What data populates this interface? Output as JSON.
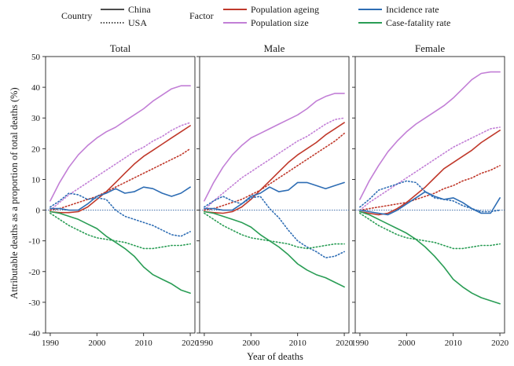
{
  "legend": {
    "country_title": "Country",
    "countries": [
      {
        "name": "China",
        "style": "solid"
      },
      {
        "name": "USA",
        "style": "dotted"
      }
    ],
    "factor_title": "Factor",
    "factors": [
      {
        "name": "Population ageing",
        "color": "#c0392b"
      },
      {
        "name": "Population size",
        "color": "#c27fd6"
      },
      {
        "name": "Incidence rate",
        "color": "#2e6db4"
      },
      {
        "name": "Case-fatality rate",
        "color": "#2a9d55"
      }
    ]
  },
  "chart_data": {
    "type": "line",
    "ylabel": "Attributable deaths as a proportion of total deaths (%)",
    "xlabel": "Year of deaths",
    "ylim": [
      -40,
      50
    ],
    "yticks": [
      -40,
      -30,
      -20,
      -10,
      0,
      10,
      20,
      30,
      40,
      50
    ],
    "xlim": [
      1989,
      2021
    ],
    "xticks": [
      1990,
      2000,
      2010,
      2020
    ],
    "years": [
      1990,
      1992,
      1994,
      1996,
      1998,
      2000,
      2002,
      2004,
      2006,
      2008,
      2010,
      2012,
      2014,
      2016,
      2018,
      2020
    ],
    "panels": [
      {
        "title": "Total",
        "series": [
          {
            "factor": "Population size",
            "country": "China",
            "values": [
              3,
              9,
              14,
              18,
              21,
              23.5,
              25.5,
              27,
              29,
              31,
              33,
              35.5,
              37.5,
              39.5,
              40.5,
              40.5
            ]
          },
          {
            "factor": "Population size",
            "country": "USA",
            "values": [
              0,
              2.5,
              5,
              7,
              9,
              11,
              13,
              15,
              17,
              19,
              20.5,
              22.5,
              24,
              26,
              27.5,
              28.5
            ]
          },
          {
            "factor": "Population ageing",
            "country": "China",
            "values": [
              -0.5,
              -0.8,
              -0.8,
              -0.5,
              1,
              3.5,
              6,
              9,
              12,
              15,
              17.5,
              19.5,
              21.5,
              23.5,
              25.5,
              27.5
            ]
          },
          {
            "factor": "Population ageing",
            "country": "USA",
            "values": [
              0,
              0.5,
              1.5,
              2.5,
              3.5,
              4.5,
              6,
              7.5,
              9,
              10.5,
              12,
              13.5,
              15,
              16.5,
              18,
              20
            ]
          },
          {
            "factor": "Incidence rate",
            "country": "China",
            "values": [
              0.5,
              0.5,
              0,
              0,
              2,
              4.5,
              5.5,
              7,
              5.5,
              6,
              7.5,
              7,
              5.5,
              4.5,
              5.5,
              7.5
            ]
          },
          {
            "factor": "Incidence rate",
            "country": "USA",
            "values": [
              1,
              3,
              5.5,
              5,
              3.5,
              4,
              3.5,
              0,
              -2,
              -3,
              -4,
              -5,
              -6.5,
              -8,
              -8.5,
              -7
            ]
          },
          {
            "factor": "Case-fatality rate",
            "country": "China",
            "values": [
              -0.5,
              -1,
              -2,
              -3,
              -4.5,
              -6,
              -8.5,
              -10.5,
              -12.5,
              -15,
              -18.5,
              -21,
              -22.5,
              -24,
              -26,
              -27
            ]
          },
          {
            "factor": "Case-fatality rate",
            "country": "USA",
            "values": [
              -1,
              -3,
              -5,
              -6.5,
              -8,
              -9,
              -9.5,
              -10,
              -10.5,
              -11.5,
              -12.5,
              -12.5,
              -12,
              -11.5,
              -11.5,
              -11
            ]
          }
        ]
      },
      {
        "title": "Male",
        "series": [
          {
            "factor": "Population size",
            "country": "China",
            "values": [
              3,
              9,
              14,
              18,
              21,
              23.5,
              25,
              26.5,
              28,
              29.5,
              31,
              33,
              35.5,
              37,
              38,
              38
            ]
          },
          {
            "factor": "Population size",
            "country": "USA",
            "values": [
              0,
              3,
              5.5,
              8,
              10.5,
              12.5,
              14.5,
              16.5,
              18.5,
              20.5,
              22.5,
              24,
              26,
              28,
              29.5,
              30
            ]
          },
          {
            "factor": "Population ageing",
            "country": "China",
            "values": [
              -0.5,
              -0.8,
              -1,
              -0.5,
              1,
              3.5,
              6.5,
              9.5,
              12.5,
              15.5,
              18,
              20,
              22,
              24.5,
              26.5,
              28.5
            ]
          },
          {
            "factor": "Population ageing",
            "country": "USA",
            "values": [
              0,
              0.5,
              1.5,
              2.5,
              3.5,
              5,
              6.5,
              8.5,
              10.5,
              12.5,
              14.5,
              16.5,
              18.5,
              20.5,
              22.5,
              25
            ]
          },
          {
            "factor": "Incidence rate",
            "country": "China",
            "values": [
              0.5,
              0.5,
              0,
              0,
              2,
              4.5,
              5.5,
              7.5,
              6,
              6.5,
              9,
              9,
              8,
              7,
              8,
              9
            ]
          },
          {
            "factor": "Incidence rate",
            "country": "USA",
            "values": [
              1,
              3,
              4.5,
              3,
              2,
              4,
              4.5,
              0.5,
              -2.5,
              -6.5,
              -10,
              -12,
              -13.5,
              -15.5,
              -15,
              -13.5
            ]
          },
          {
            "factor": "Case-fatality rate",
            "country": "China",
            "values": [
              -0.5,
              -1,
              -2,
              -3,
              -4,
              -5.5,
              -8,
              -10,
              -12,
              -14.5,
              -17.5,
              -19.5,
              -21,
              -22,
              -23.5,
              -25
            ]
          },
          {
            "factor": "Case-fatality rate",
            "country": "USA",
            "values": [
              -1,
              -3,
              -5,
              -6.5,
              -8,
              -9,
              -9.5,
              -10,
              -10.5,
              -11,
              -12,
              -12.5,
              -12,
              -11.5,
              -11,
              -11
            ]
          }
        ]
      },
      {
        "title": "Female",
        "series": [
          {
            "factor": "Population size",
            "country": "China",
            "values": [
              3.5,
              9.5,
              14.5,
              19,
              22.5,
              25.5,
              28,
              30,
              32,
              34,
              36.5,
              39.5,
              42.5,
              44.5,
              45,
              45
            ]
          },
          {
            "factor": "Population size",
            "country": "USA",
            "values": [
              0,
              2.5,
              4.5,
              6.5,
              8.5,
              10.5,
              12.5,
              14.5,
              16.5,
              18.5,
              20.5,
              22,
              23.5,
              25,
              26.5,
              27
            ]
          },
          {
            "factor": "Population ageing",
            "country": "China",
            "values": [
              -0.5,
              -1,
              -1.5,
              -1,
              0.5,
              2.5,
              5,
              7.5,
              10.5,
              13.5,
              15.5,
              17.5,
              19.5,
              22,
              24,
              26
            ]
          },
          {
            "factor": "Population ageing",
            "country": "USA",
            "values": [
              0,
              0.5,
              1,
              1.5,
              2,
              2.5,
              3.5,
              4.5,
              5.5,
              7,
              8,
              9.5,
              10.5,
              12,
              13,
              14.5
            ]
          },
          {
            "factor": "Incidence rate",
            "country": "China",
            "values": [
              0,
              -0.5,
              -1,
              -1.5,
              0,
              2,
              4,
              6,
              4.5,
              3.5,
              4,
              2.5,
              0.5,
              -1,
              -1,
              4
            ]
          },
          {
            "factor": "Incidence rate",
            "country": "USA",
            "values": [
              1,
              3.5,
              6.5,
              7.5,
              8.5,
              9.5,
              9,
              6,
              4,
              3.5,
              3,
              1.5,
              0.5,
              -0.5,
              -0.5,
              0
            ]
          },
          {
            "factor": "Case-fatality rate",
            "country": "China",
            "values": [
              -0.5,
              -1.5,
              -3,
              -4.5,
              -6,
              -7.5,
              -9.5,
              -12,
              -15,
              -18.5,
              -22.5,
              -25,
              -27,
              -28.5,
              -29.5,
              -30.5
            ]
          },
          {
            "factor": "Case-fatality rate",
            "country": "USA",
            "values": [
              -1,
              -3,
              -5,
              -6.5,
              -8,
              -9,
              -9.5,
              -10,
              -10.5,
              -11.5,
              -12.5,
              -12.5,
              -12,
              -11.5,
              -11.5,
              -11
            ]
          }
        ]
      }
    ]
  }
}
